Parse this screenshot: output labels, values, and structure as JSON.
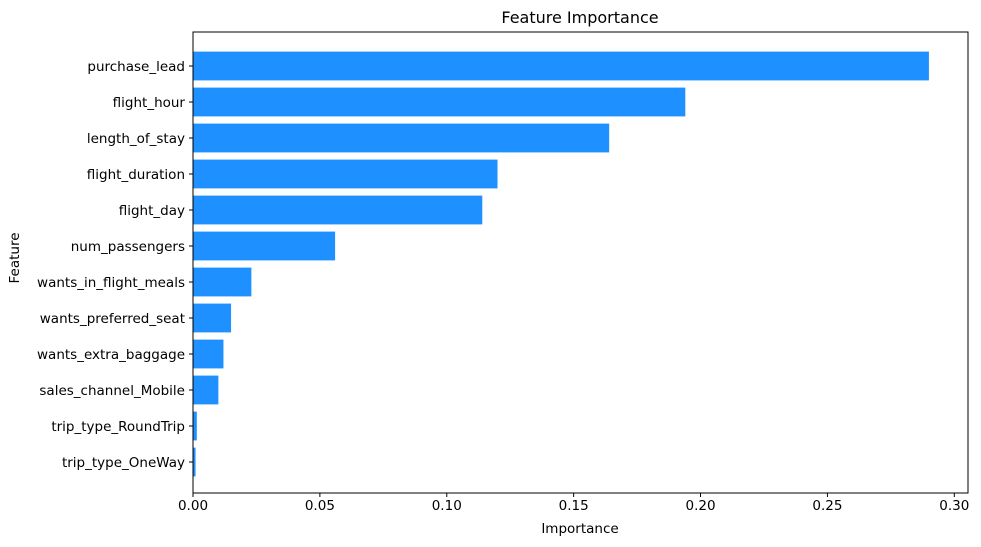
{
  "figure": {
    "background": "#ffffff"
  },
  "chart_data": {
    "type": "bar",
    "orientation": "horizontal",
    "title": "Feature Importance",
    "xlabel": "Importance",
    "ylabel": "Feature",
    "categories": [
      "purchase_lead",
      "flight_hour",
      "length_of_stay",
      "flight_duration",
      "flight_day",
      "num_passengers",
      "wants_in_flight_meals",
      "wants_preferred_seat",
      "wants_extra_baggage",
      "sales_channel_Mobile",
      "trip_type_RoundTrip",
      "trip_type_OneWay"
    ],
    "values": [
      0.29,
      0.194,
      0.164,
      0.12,
      0.114,
      0.056,
      0.023,
      0.015,
      0.012,
      0.01,
      0.0015,
      0.001
    ],
    "bar_color": "#1E90FF",
    "xlim": [
      0,
      0.3054
    ],
    "xticks": [
      0,
      0.05,
      0.1,
      0.15,
      0.2,
      0.25,
      0.3
    ],
    "xtick_labels": [
      "0.00",
      "0.05",
      "0.10",
      "0.15",
      "0.20",
      "0.25",
      "0.30"
    ],
    "grid": false,
    "legend": null
  }
}
